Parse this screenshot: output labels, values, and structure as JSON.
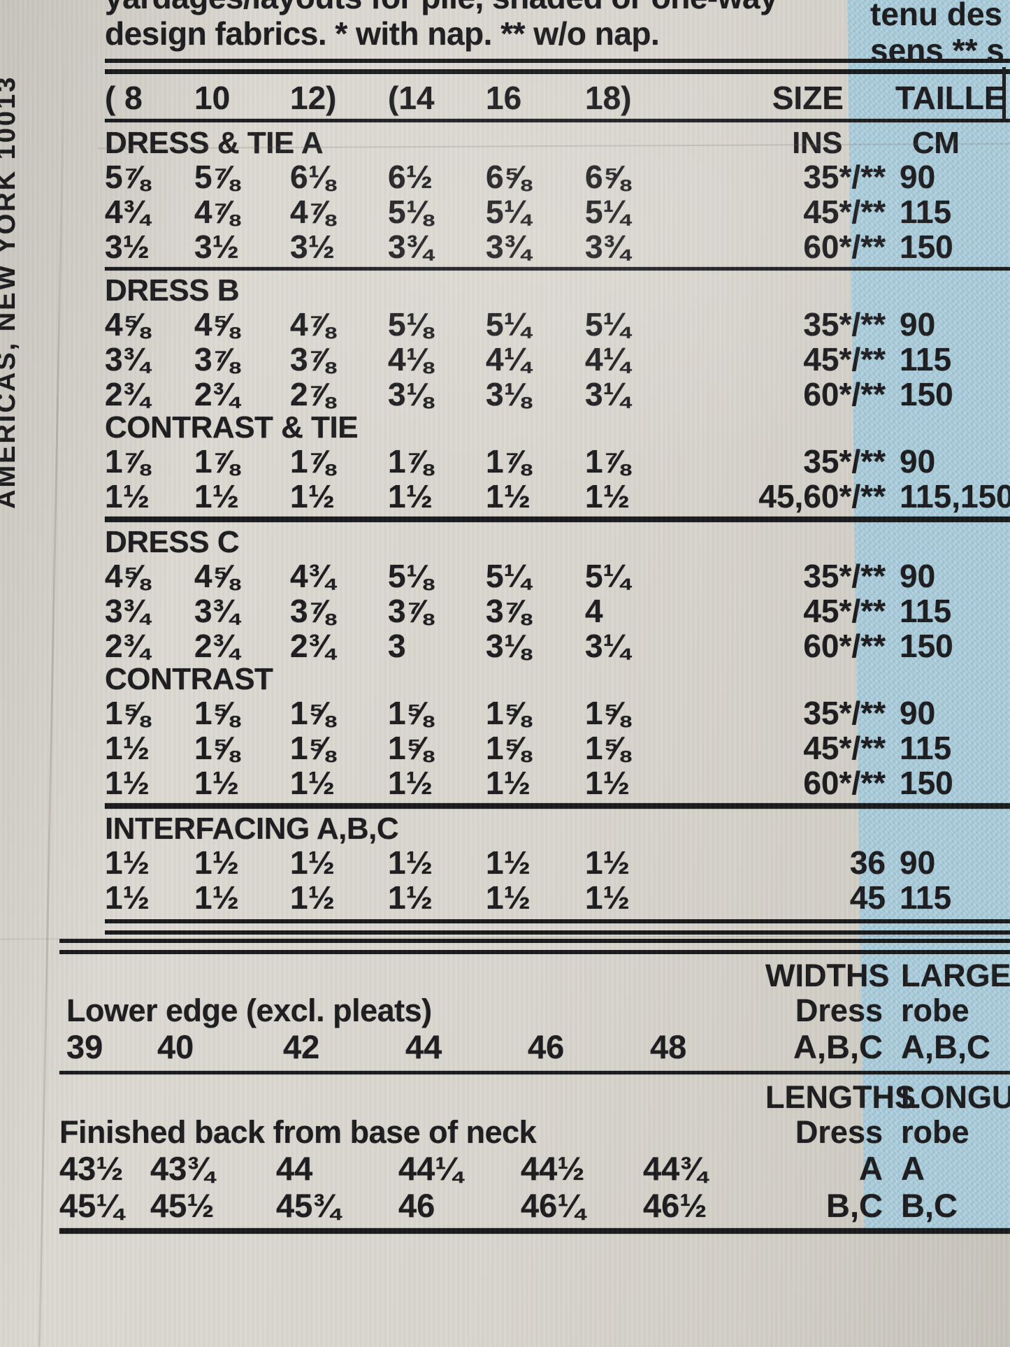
{
  "colors": {
    "paper": "#d7d4cc",
    "blue_band": "#a9ccdb",
    "ink": "#1c1c1f"
  },
  "side_text": "AMERICAS, NEW YORK 10013",
  "note": {
    "en_line1": "yardages/layouts for pile, shaded or one-way",
    "en_line2": "design fabrics. * with nap. ** w/o nap.",
    "fr_line1": "tenu des",
    "fr_line2": "sens ** s"
  },
  "header": {
    "size_cols": [
      "( 8",
      "10",
      "12)",
      "(14",
      "16",
      "18)"
    ],
    "size": "SIZE",
    "taille": "TAILLE",
    "ins": "INS",
    "cm": "CM"
  },
  "sections": [
    {
      "title": "DRESS & TIE A",
      "show_units": true,
      "rule_after": "medium",
      "rows": [
        {
          "values": [
            "5⅞",
            "5⅞",
            "6⅛",
            "6½",
            "6⅝",
            "6⅝"
          ],
          "ins": "35*/**",
          "cm": "90"
        },
        {
          "values": [
            "4¾",
            "4⅞",
            "4⅞",
            "5⅛",
            "5¼",
            "5¼"
          ],
          "ins": "45*/**",
          "cm": "115"
        },
        {
          "values": [
            "3½",
            "3½",
            "3½",
            "3¾",
            "3¾",
            "3¾"
          ],
          "ins": "60*/**",
          "cm": "150"
        }
      ]
    },
    {
      "title": "DRESS B",
      "show_units": false,
      "rule_after": "none",
      "rows": [
        {
          "values": [
            "4⅝",
            "4⅝",
            "4⅞",
            "5⅛",
            "5¼",
            "5¼"
          ],
          "ins": "35*/**",
          "cm": "90"
        },
        {
          "values": [
            "3¾",
            "3⅞",
            "3⅞",
            "4⅛",
            "4¼",
            "4¼"
          ],
          "ins": "45*/**",
          "cm": "115"
        },
        {
          "values": [
            "2¾",
            "2¾",
            "2⅞",
            "3⅛",
            "3⅛",
            "3¼"
          ],
          "ins": "60*/**",
          "cm": "150"
        }
      ]
    },
    {
      "title": "CONTRAST & TIE",
      "show_units": false,
      "rule_after": "heavy",
      "rows": [
        {
          "values": [
            "1⅞",
            "1⅞",
            "1⅞",
            "1⅞",
            "1⅞",
            "1⅞"
          ],
          "ins": "35*/**",
          "cm": "90"
        },
        {
          "values": [
            "1½",
            "1½",
            "1½",
            "1½",
            "1½",
            "1½"
          ],
          "ins": "45,60*/**",
          "cm": "115,150"
        }
      ]
    },
    {
      "title": "DRESS C",
      "show_units": false,
      "rule_after": "none",
      "rows": [
        {
          "values": [
            "4⅝",
            "4⅝",
            "4¾",
            "5⅛",
            "5¼",
            "5¼"
          ],
          "ins": "35*/**",
          "cm": "90"
        },
        {
          "values": [
            "3¾",
            "3¾",
            "3⅞",
            "3⅞",
            "3⅞",
            "4"
          ],
          "ins": "45*/**",
          "cm": "115"
        },
        {
          "values": [
            "2¾",
            "2¾",
            "2¾",
            "3",
            "3⅛",
            "3¼"
          ],
          "ins": "60*/**",
          "cm": "150"
        }
      ]
    },
    {
      "title": "CONTRAST",
      "show_units": false,
      "rule_after": "heavy",
      "rows": [
        {
          "values": [
            "1⅝",
            "1⅝",
            "1⅝",
            "1⅝",
            "1⅝",
            "1⅝"
          ],
          "ins": "35*/**",
          "cm": "90"
        },
        {
          "values": [
            "1½",
            "1⅝",
            "1⅝",
            "1⅝",
            "1⅝",
            "1⅝"
          ],
          "ins": "45*/**",
          "cm": "115"
        },
        {
          "values": [
            "1½",
            "1½",
            "1½",
            "1½",
            "1½",
            "1½"
          ],
          "ins": "60*/**",
          "cm": "150"
        }
      ]
    },
    {
      "title": "INTERFACING A,B,C",
      "show_units": false,
      "rule_after": "double",
      "rows": [
        {
          "values": [
            "1½",
            "1½",
            "1½",
            "1½",
            "1½",
            "1½"
          ],
          "ins": "36",
          "cm": "90"
        },
        {
          "values": [
            "1½",
            "1½",
            "1½",
            "1½",
            "1½",
            "1½"
          ],
          "ins": "45",
          "cm": "115"
        }
      ]
    }
  ],
  "widths": {
    "title": "WIDTHS",
    "title_fr": "LARGEU",
    "dress": "Dress",
    "robe": "robe",
    "items": "A,B,C",
    "items_fr": "A,B,C",
    "label": "Lower edge (excl. pleats)",
    "values": [
      "39",
      "40",
      "42",
      "44",
      "46",
      "48"
    ]
  },
  "lengths": {
    "title": "LENGTHS",
    "title_fr": "LONGU",
    "dress": "Dress",
    "robe": "robe",
    "label": "Finished back from base of neck",
    "rows": [
      {
        "values": [
          "43½",
          "43¾",
          "44",
          "44¼",
          "44½",
          "44¾"
        ],
        "dress": "A",
        "robe": "A"
      },
      {
        "values": [
          "45¼",
          "45½",
          "45¾",
          "46",
          "46¼",
          "46½"
        ],
        "dress": "B,C",
        "robe": "B,C"
      }
    ]
  }
}
